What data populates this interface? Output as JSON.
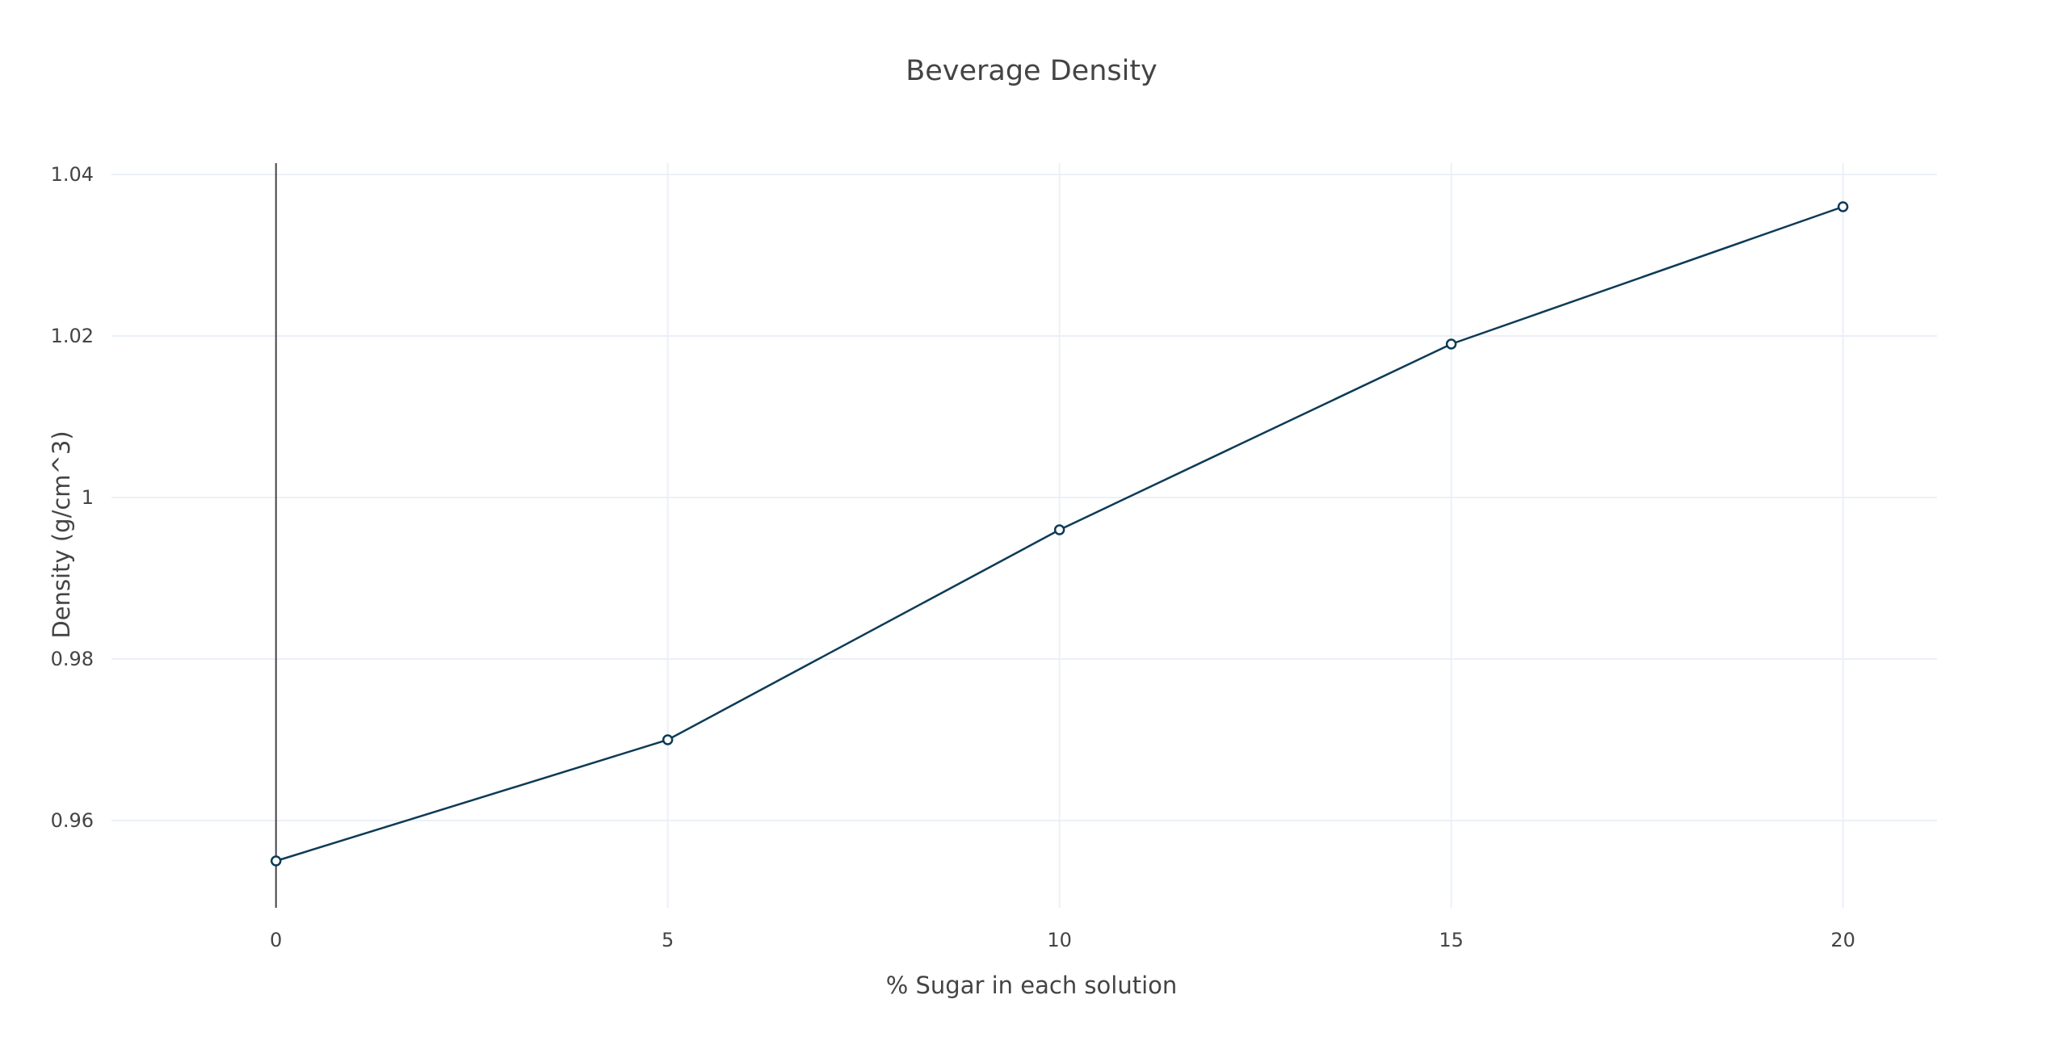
{
  "chart_data": {
    "type": "line",
    "title": "Beverage Density",
    "xlabel": "% Sugar in each solution",
    "ylabel": "Density (g/cm^3)",
    "x": [
      0,
      5,
      10,
      15,
      20
    ],
    "series": [
      {
        "values": [
          0.955,
          0.97,
          0.996,
          1.019,
          1.036
        ],
        "color": "#0d3b56",
        "marker": "open-circle"
      }
    ],
    "xlim": [
      -2.1,
      21.2
    ],
    "ylim": [
      0.9492,
      1.0414
    ],
    "x_ticks": [
      0,
      5,
      10,
      15,
      20
    ],
    "x_tick_labels": [
      "0",
      "5",
      "10",
      "15",
      "20"
    ],
    "y_ticks": [
      0.96,
      0.98,
      1.0,
      1.02,
      1.04
    ],
    "y_tick_labels": [
      "0.96",
      "0.98",
      "1",
      "1.02",
      "1.04"
    ],
    "grid": true,
    "vertical_zero_line": true,
    "legend": "none"
  }
}
